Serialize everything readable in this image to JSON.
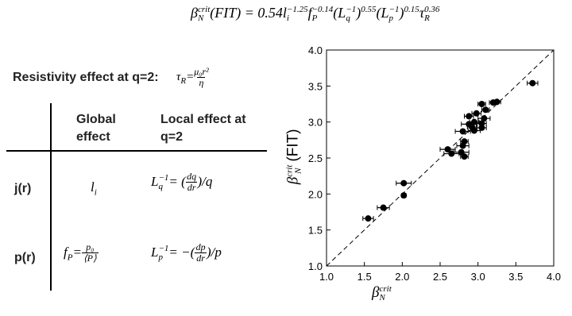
{
  "formula": [
    {
      "base": "β",
      "sub": "N",
      "sup": "crit"
    },
    {
      "base": "(FIT) = 0.54 "
    },
    {
      "base": "l",
      "sub": "i",
      "sup": "−1.25"
    },
    {
      "base": "f",
      "sub": "P",
      "sup": "−0.14"
    },
    {
      "base": "(L",
      "sub": "q",
      "sup": "−1"
    },
    {
      "base": ")",
      "sup": "0.55"
    },
    {
      "base": "(L",
      "sub": "p",
      "sup": "−1"
    },
    {
      "base": ")",
      "sup": "0.15"
    },
    {
      "base": "τ",
      "sub": "R",
      "sup": "0.36"
    }
  ],
  "heading": {
    "text": "Resistivity effect at q=2:",
    "formula": [
      {
        "base": "τ",
        "sub": "R"
      },
      {
        "base": " = "
      },
      {
        "num": "μ₀r²",
        "den": "η"
      }
    ]
  },
  "table": {
    "header": [
      "Global effect",
      "Local effect at q=2"
    ],
    "rows": [
      {
        "label": "j(r)",
        "global": [
          {
            "base": "l",
            "sub": "i"
          }
        ],
        "local": [
          {
            "base": "L",
            "sub": "q",
            "sup": "−1"
          },
          {
            "base": " = ("
          },
          {
            "num": "dq",
            "den": "dr"
          },
          {
            "base": ")/q"
          }
        ]
      },
      {
        "label": "p(r)",
        "global": [
          {
            "base": "f",
            "sub": "P"
          },
          {
            "base": " = "
          },
          {
            "num": "p₀",
            "den": "⟨P⟩"
          }
        ],
        "local": [
          {
            "base": "L",
            "sub": "p",
            "sup": "−1"
          },
          {
            "base": " = −("
          },
          {
            "num": "dp",
            "den": "dr"
          },
          {
            "base": ")/p"
          }
        ]
      }
    ]
  },
  "chart_data": {
    "type": "scatter",
    "xlabel": {
      "base": "β",
      "sub": "N",
      "sup": "crit"
    },
    "ylabel": {
      "base": "β",
      "sub": "N",
      "sup": "crit",
      "suffix": "(FIT)"
    },
    "color": "#000000",
    "x": [
      1.55,
      1.75,
      2.02,
      2.02,
      2.6,
      2.65,
      2.78,
      2.82,
      2.8,
      2.82,
      2.8,
      2.88,
      2.92,
      2.95,
      2.95,
      2.88,
      2.98,
      3.05,
      3.05,
      3.08,
      3.1,
      3.05,
      3.2,
      3.25,
      3.72
    ],
    "values": [
      1.66,
      1.81,
      1.98,
      2.15,
      2.62,
      2.56,
      2.58,
      2.52,
      2.67,
      2.73,
      2.87,
      2.97,
      2.93,
      2.88,
      3.0,
      3.08,
      3.12,
      2.98,
      2.92,
      3.05,
      3.17,
      3.25,
      3.27,
      3.28,
      3.54
    ],
    "xerr": [
      0.07,
      0.08,
      0.03,
      0.1,
      0.1,
      0.1,
      0.1,
      0.05,
      0.08,
      0.05,
      0.1,
      0.1,
      0.06,
      0.08,
      0.06,
      0.06,
      0.06,
      0.06,
      0.06,
      0.08,
      0.05,
      0.05,
      0.05,
      0.05,
      0.07
    ],
    "xlim": [
      1.0,
      4.0
    ],
    "ylim": [
      1.0,
      4.0
    ],
    "xticks": [
      {
        "value": 1,
        "label": "1.0"
      },
      {
        "value": 1.5,
        "label": "1.5"
      },
      {
        "value": 2,
        "label": "2.0"
      },
      {
        "value": 2.5,
        "label": "2.5"
      },
      {
        "value": 3,
        "label": "3.0"
      },
      {
        "value": 3.5,
        "label": "3.5"
      },
      {
        "value": 4,
        "label": "4.0"
      }
    ],
    "yticks": [
      {
        "value": 1,
        "label": "1.0"
      },
      {
        "value": 1.5,
        "label": "1.5"
      },
      {
        "value": 2,
        "label": "2.0"
      },
      {
        "value": 2.5,
        "label": "2.5"
      },
      {
        "value": 3,
        "label": "3.0"
      },
      {
        "value": 3.5,
        "label": "3.5"
      },
      {
        "value": 4,
        "label": "4.0"
      }
    ]
  }
}
